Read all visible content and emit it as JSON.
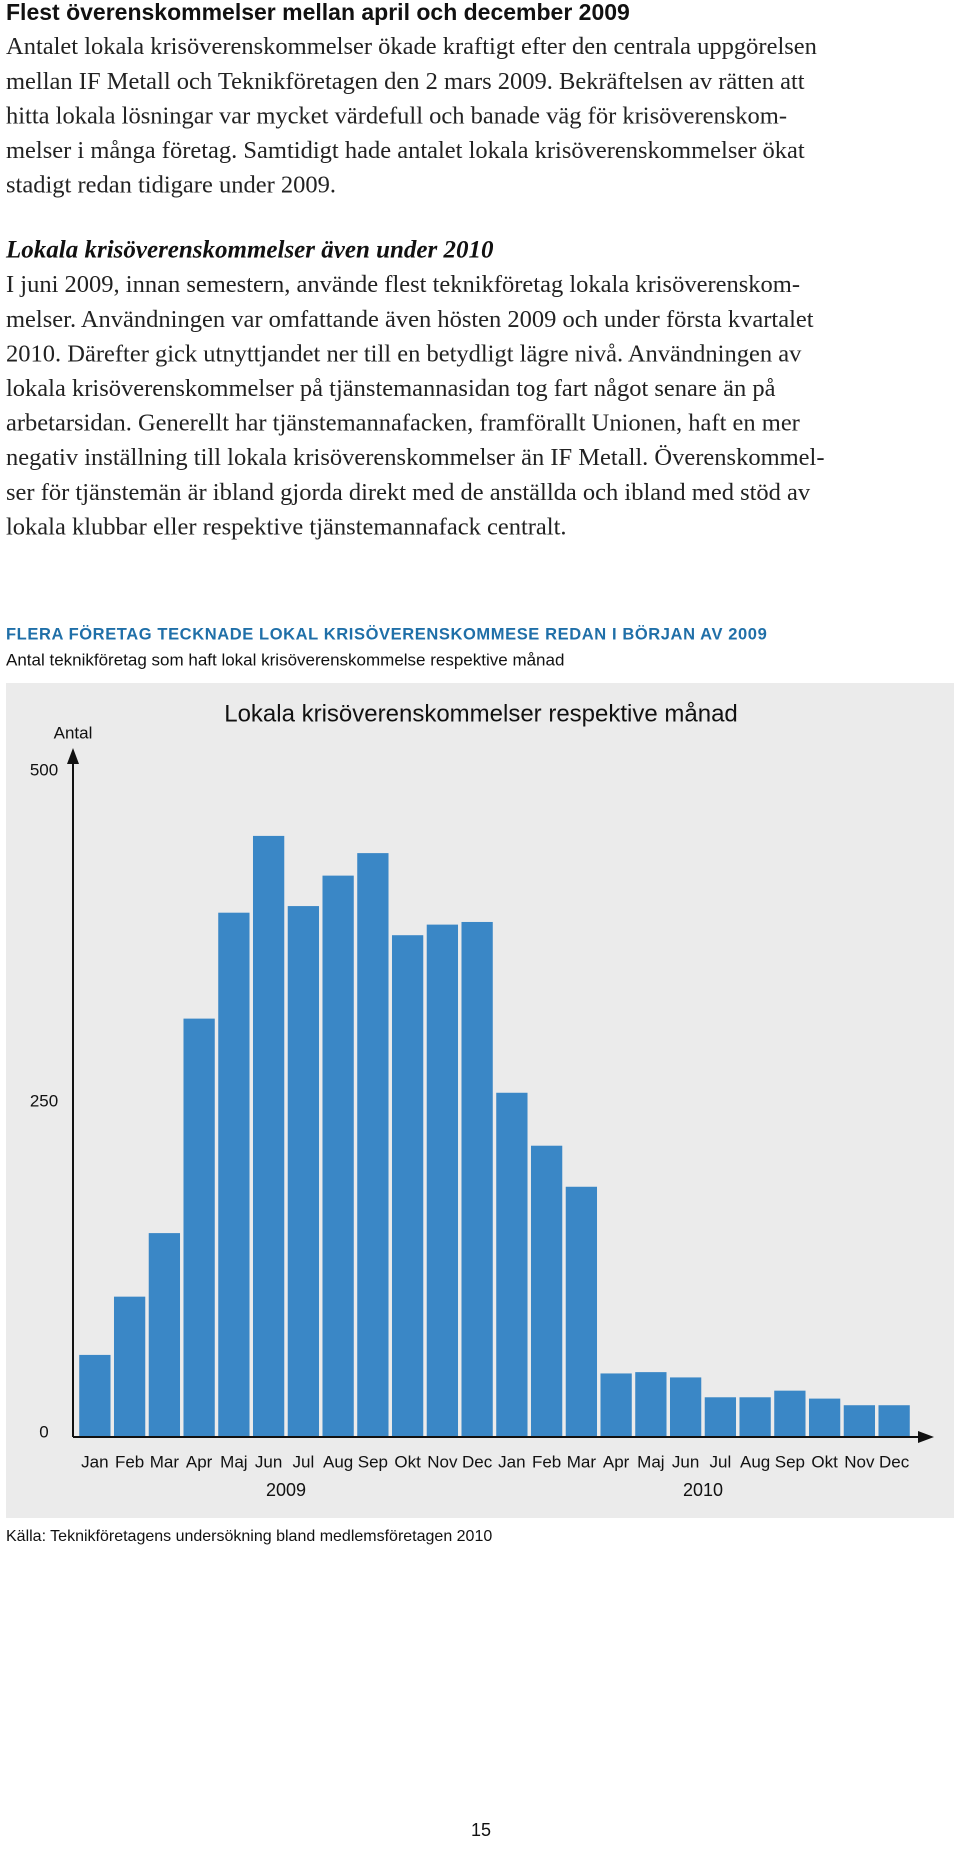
{
  "sections": [
    {
      "heading": "Flest överenskommelser mellan april och december 2009",
      "lines": [
        "Antalet lokala krisöverenskommelser ökade kraftigt efter den centrala uppgörelsen",
        "mellan IF Metall och Teknikföretagen den 2 mars 2009. Bekräftelsen av rätten att",
        "hitta lokala lösningar var mycket värdefull och banade väg för krisöverenskom-",
        "melser i många företag. Samtidigt hade antalet lokala krisöverenskommelser ökat",
        "stadigt redan tidigare under 2009."
      ]
    },
    {
      "heading": "Lokala krisöverenskommelser även under 2010",
      "lines": [
        "I juni 2009, innan semestern, använde flest teknikföretag lokala krisöverenskom-",
        "melser. Användningen var omfattande även hösten 2009 och under första kvartalet",
        "2010. Därefter gick utnyttjandet ner till en betydligt lägre nivå. Användningen av",
        "lokala krisöverenskommelser på tjänstemannasidan tog fart något senare än på",
        "arbetarsidan. Generellt har tjänstemannafacken, framförallt Unionen, haft en mer",
        "negativ inställning till lokala krisöverenskommelser än IF Metall. Överenskommel-",
        "ser för tjänstemän är ibland gjorda direkt med de anställda och ibland med stöd av",
        "lokala klubbar eller respektive tjänstemannafack centralt."
      ]
    }
  ],
  "figure": {
    "heading": "FLERA FÖRETAG TECKNADE LOKAL KRISÖVERENSKOMMESE REDAN I BÖRJAN AV 2009",
    "subheading": "Antal teknikföretag som haft lokal krisöverenskommelse respektive månad",
    "source": "Källa: Teknikföretagens undersökning bland medlemsföretagen 2010"
  },
  "chart_data": {
    "type": "bar",
    "title": "Lokala krisöverenskommelser respektive månad",
    "y_label": "Antal",
    "categories": [
      "Jan",
      "Feb",
      "Mar",
      "Apr",
      "Maj",
      "Jun",
      "Jul",
      "Aug",
      "Sep",
      "Okt",
      "Nov",
      "Dec",
      "Jan",
      "Feb",
      "Mar",
      "Apr",
      "Maj",
      "Jun",
      "Jul",
      "Aug",
      "Sep",
      "Okt",
      "Nov",
      "Dec"
    ],
    "year_labels": [
      "2009",
      "2010"
    ],
    "values": [
      62,
      106,
      154,
      316,
      396,
      454,
      401,
      424,
      441,
      379,
      387,
      389,
      260,
      220,
      189,
      48,
      49,
      45,
      30,
      30,
      35,
      29,
      24,
      24
    ],
    "color": "#3a87c6",
    "ylim": [
      0,
      500
    ],
    "yticks": [
      0,
      250,
      500
    ],
    "grid": false
  },
  "page_number": "15"
}
